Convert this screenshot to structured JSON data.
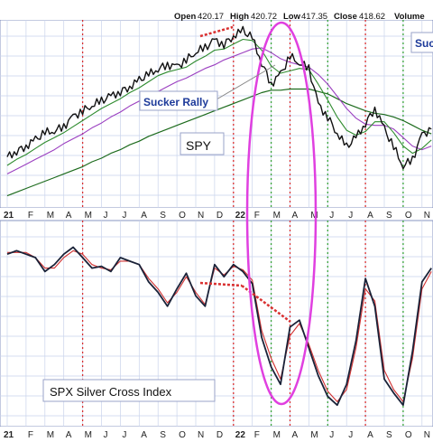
{
  "header": {
    "open_label": "Open",
    "open": "420.17",
    "high_label": "High",
    "high": "420.72",
    "low_label": "Low",
    "low": "417.35",
    "close_label": "Close",
    "close": "418.62",
    "volume_label": "Volume"
  },
  "months_top": [
    "21",
    "F",
    "M",
    "A",
    "M",
    "J",
    "J",
    "A",
    "S",
    "O",
    "N",
    "D",
    "22",
    "F",
    "M",
    "A",
    "M",
    "J",
    "J",
    "A",
    "S",
    "O",
    "N"
  ],
  "months_bottom": [
    "21",
    "F",
    "M",
    "A",
    "M",
    "J",
    "J",
    "A",
    "S",
    "O",
    "N",
    "D",
    "22",
    "F",
    "M",
    "A",
    "M",
    "J",
    "J",
    "A",
    "S",
    "O",
    "N"
  ],
  "annotations": {
    "sucker_rally": "Sucker Rally",
    "spy": "SPY",
    "sucker_partial": "Suc",
    "silver_cross": "SPX Silver Cross Index"
  },
  "colors": {
    "grid": "#c9d3ec",
    "price": "#111111",
    "ma_short": "#2e8b2e",
    "ma_mid": "#9b3fc0",
    "ma_long": "#1d6b1d",
    "sci_line": "#1a2238",
    "sci_signal": "#d03030",
    "red_marker": "#d93030",
    "green_marker": "#3aa43a",
    "ellipse": "#e040e0",
    "callout_text": "#1d3a9a"
  },
  "chart_data": [
    {
      "type": "line",
      "title": "SPY",
      "x": [
        0,
        0.5,
        1,
        1.5,
        2,
        2.5,
        3,
        3.5,
        4,
        4.5,
        5,
        5.5,
        6,
        6.5,
        7,
        7.5,
        8,
        8.5,
        9,
        9.5,
        10,
        10.5,
        11,
        11.5,
        12,
        12.5,
        13,
        13.5,
        14,
        14.5,
        15,
        15.5,
        16,
        16.5,
        17,
        17.5,
        18,
        18.5,
        19,
        19.5,
        20,
        20.5,
        21,
        21.5,
        22,
        22.5
      ],
      "series": [
        {
          "values": [
            372,
            377,
            381,
            386,
            392,
            394,
            397,
            405,
            410,
            415,
            418,
            422,
            426,
            430,
            435,
            440,
            445,
            448,
            446,
            452,
            459,
            462,
            468,
            465,
            472,
            476,
            470,
            450,
            432,
            440,
            455,
            450,
            445,
            415,
            405,
            392,
            380,
            388,
            400,
            412,
            395,
            380,
            365,
            370,
            390,
            395
          ]
        },
        {
          "values": [
            365,
            370,
            374,
            379,
            384,
            388,
            392,
            397,
            402,
            407,
            412,
            416,
            420,
            425,
            429,
            434,
            439,
            442,
            444,
            446,
            451,
            455,
            460,
            461,
            465,
            469,
            468,
            460,
            447,
            441,
            443,
            445,
            444,
            432,
            419,
            405,
            394,
            390,
            393,
            401,
            401,
            392,
            381,
            375,
            379,
            386
          ]
        },
        {
          "values": [
            358,
            362,
            366,
            370,
            374,
            378,
            383,
            387,
            391,
            396,
            400,
            405,
            409,
            414,
            418,
            422,
            426,
            430,
            434,
            437,
            441,
            445,
            448,
            452,
            455,
            458,
            461,
            462,
            458,
            453,
            450,
            448,
            446,
            440,
            432,
            422,
            412,
            404,
            399,
            398,
            398,
            395,
            388,
            381,
            378,
            381
          ]
        },
        {
          "values": [
            340,
            343,
            346,
            349,
            352,
            355,
            358,
            361,
            364,
            368,
            371,
            375,
            378,
            382,
            385,
            389,
            392,
            395,
            398,
            401,
            404,
            407,
            410,
            413,
            416,
            419,
            422,
            425,
            427,
            427,
            428,
            428,
            428,
            426,
            424,
            420,
            416,
            413,
            410,
            408,
            407,
            405,
            402,
            398,
            394,
            391
          ]
        }
      ],
      "markers": {
        "red": [
          "2021-05",
          "2022-01",
          "2022-04",
          "2022-08"
        ],
        "green": [
          "2022-03",
          "2022-06",
          "2022-10"
        ]
      }
    },
    {
      "type": "line",
      "title": "SPX Silver Cross Index",
      "ylim": [
        0,
        100
      ],
      "x": [
        0,
        0.5,
        1,
        1.5,
        2,
        2.5,
        3,
        3.5,
        4,
        4.5,
        5,
        5.5,
        6,
        6.5,
        7,
        7.5,
        8,
        8.5,
        9,
        9.5,
        10,
        10.5,
        11,
        11.5,
        12,
        12.5,
        13,
        13.5,
        14,
        14.5,
        15,
        15.5,
        16,
        16.5,
        17,
        17.5,
        18,
        18.5,
        19,
        19.5,
        20,
        20.5,
        21,
        21.5,
        22,
        22.5
      ],
      "series": [
        {
          "values": [
            90,
            92,
            90,
            88,
            80,
            84,
            90,
            94,
            88,
            82,
            83,
            80,
            88,
            86,
            84,
            74,
            68,
            60,
            70,
            79,
            66,
            60,
            84,
            77,
            84,
            80,
            73,
            42,
            25,
            15,
            48,
            52,
            36,
            20,
            8,
            3,
            15,
            40,
            76,
            60,
            18,
            10,
            3,
            34,
            74,
            82
          ]
        },
        {
          "values": [
            91,
            91,
            91,
            88,
            82,
            82,
            88,
            92,
            90,
            84,
            82,
            81,
            86,
            86,
            84,
            76,
            70,
            62,
            68,
            77,
            68,
            61,
            82,
            78,
            83,
            81,
            75,
            46,
            30,
            18,
            43,
            50,
            38,
            23,
            11,
            5,
            12,
            36,
            70,
            63,
            23,
            12,
            5,
            30,
            70,
            80
          ]
        }
      ]
    }
  ]
}
